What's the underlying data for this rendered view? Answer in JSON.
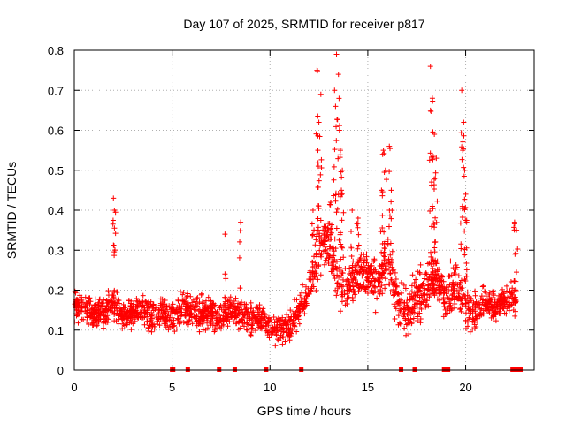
{
  "chart_data": {
    "type": "scatter",
    "title": "Day 107 of 2025, SRMTID for receiver p817",
    "xlabel": "GPS time / hours",
    "ylabel": "SRMTID / TECUs",
    "xlim": [
      0,
      23.5
    ],
    "ylim": [
      0,
      0.8
    ],
    "xticks": [
      0,
      5,
      10,
      15,
      20
    ],
    "yticks": [
      0,
      0.1,
      0.2,
      0.3,
      0.4,
      0.5,
      0.6,
      0.7,
      0.8
    ],
    "xtick_labels": [
      "0",
      "5",
      "10",
      "15",
      "20"
    ],
    "ytick_labels": [
      "0",
      "0.1",
      "0.2",
      "0.3",
      "0.4",
      "0.5",
      "0.6",
      "0.7",
      "0.8"
    ],
    "grid": true,
    "marker": "plus",
    "color": "#ff0000",
    "series": [
      {
        "name": "SRMTID",
        "trend": [
          [
            0.0,
            0.17
          ],
          [
            0.5,
            0.15
          ],
          [
            1.0,
            0.14
          ],
          [
            1.5,
            0.15
          ],
          [
            2.0,
            0.17
          ],
          [
            2.5,
            0.13
          ],
          [
            3.0,
            0.14
          ],
          [
            3.5,
            0.15
          ],
          [
            4.0,
            0.13
          ],
          [
            4.5,
            0.15
          ],
          [
            5.0,
            0.13
          ],
          [
            5.5,
            0.16
          ],
          [
            6.0,
            0.15
          ],
          [
            6.5,
            0.14
          ],
          [
            7.0,
            0.14
          ],
          [
            7.5,
            0.13
          ],
          [
            8.0,
            0.15
          ],
          [
            8.5,
            0.14
          ],
          [
            9.0,
            0.13
          ],
          [
            9.5,
            0.13
          ],
          [
            10.0,
            0.11
          ],
          [
            10.5,
            0.1
          ],
          [
            11.0,
            0.11
          ],
          [
            11.5,
            0.15
          ],
          [
            12.0,
            0.2
          ],
          [
            12.5,
            0.3
          ],
          [
            13.0,
            0.32
          ],
          [
            13.5,
            0.22
          ],
          [
            14.0,
            0.2
          ],
          [
            14.5,
            0.25
          ],
          [
            15.0,
            0.23
          ],
          [
            15.5,
            0.22
          ],
          [
            16.0,
            0.28
          ],
          [
            16.5,
            0.18
          ],
          [
            17.0,
            0.14
          ],
          [
            17.5,
            0.18
          ],
          [
            18.0,
            0.2
          ],
          [
            18.5,
            0.24
          ],
          [
            19.0,
            0.17
          ],
          [
            19.5,
            0.22
          ],
          [
            20.0,
            0.15
          ],
          [
            20.5,
            0.14
          ],
          [
            21.0,
            0.17
          ],
          [
            21.5,
            0.16
          ],
          [
            22.0,
            0.17
          ],
          [
            22.5,
            0.18
          ]
        ],
        "spikes": [
          [
            2.0,
            0.43
          ],
          [
            2.05,
            0.4
          ],
          [
            12.4,
            0.75
          ],
          [
            12.6,
            0.69
          ],
          [
            12.5,
            0.62
          ],
          [
            12.45,
            0.55
          ],
          [
            13.4,
            0.79
          ],
          [
            13.5,
            0.74
          ],
          [
            13.3,
            0.7
          ],
          [
            13.35,
            0.66
          ],
          [
            13.55,
            0.6
          ],
          [
            13.6,
            0.55
          ],
          [
            13.7,
            0.5
          ],
          [
            13.65,
            0.45
          ],
          [
            15.8,
            0.55
          ],
          [
            16.1,
            0.56
          ],
          [
            15.9,
            0.5
          ],
          [
            15.7,
            0.45
          ],
          [
            16.2,
            0.45
          ],
          [
            18.2,
            0.76
          ],
          [
            18.3,
            0.68
          ],
          [
            18.2,
            0.65
          ],
          [
            18.4,
            0.59
          ],
          [
            18.5,
            0.53
          ],
          [
            18.45,
            0.48
          ],
          [
            18.3,
            0.41
          ],
          [
            19.8,
            0.7
          ],
          [
            19.9,
            0.62
          ],
          [
            19.85,
            0.55
          ],
          [
            19.95,
            0.5
          ],
          [
            20.0,
            0.44
          ],
          [
            20.05,
            0.37
          ],
          [
            7.7,
            0.34
          ],
          [
            8.5,
            0.37
          ],
          [
            22.5,
            0.37
          ],
          [
            22.6,
            0.35
          ],
          [
            14.2,
            0.4
          ],
          [
            14.5,
            0.38
          ],
          [
            12.2,
            0.4
          ],
          [
            13.1,
            0.42
          ]
        ],
        "gap_markers": [
          5.0,
          5.05,
          5.8,
          7.4,
          8.2,
          9.8,
          11.6,
          16.7,
          17.4,
          18.9,
          19.1,
          22.4,
          22.6,
          22.8
        ]
      }
    ]
  }
}
